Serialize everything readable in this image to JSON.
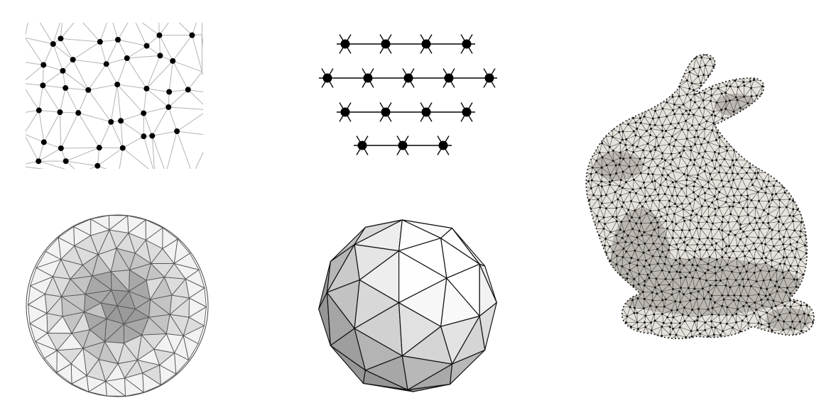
{
  "figure": {
    "background": "#ffffff",
    "panels": [
      {
        "id": "random-point-triangulation",
        "kind": "irregular 2D point set with Delaunay-like triangulation",
        "points": "black dots",
        "edges": "#b0b0b0"
      },
      {
        "id": "regular-triangular-lattice",
        "kind": "regular triangular lattice with black nodes",
        "edges": "#000000"
      },
      {
        "id": "spherical-mesh-top-view",
        "kind": "triangulated disc shaded by depth",
        "shades": [
          "#f2f2f2",
          "#dcdcdc",
          "#c4c4c4",
          "#a8a8a8",
          "#9a9a9a"
        ]
      },
      {
        "id": "geodesic-icosphere",
        "kind": "subdivided icosahedron sphere",
        "shades": [
          "#ffffff",
          "#ececec",
          "#d6d6d6",
          "#bdbdbd",
          "#a3a3a3"
        ]
      },
      {
        "id": "stanford-bunny-mesh",
        "kind": "triangulated 3D bunny surface with vertex dots",
        "fill": "#e6e2dc",
        "edges": "#3a3a3a"
      }
    ]
  }
}
